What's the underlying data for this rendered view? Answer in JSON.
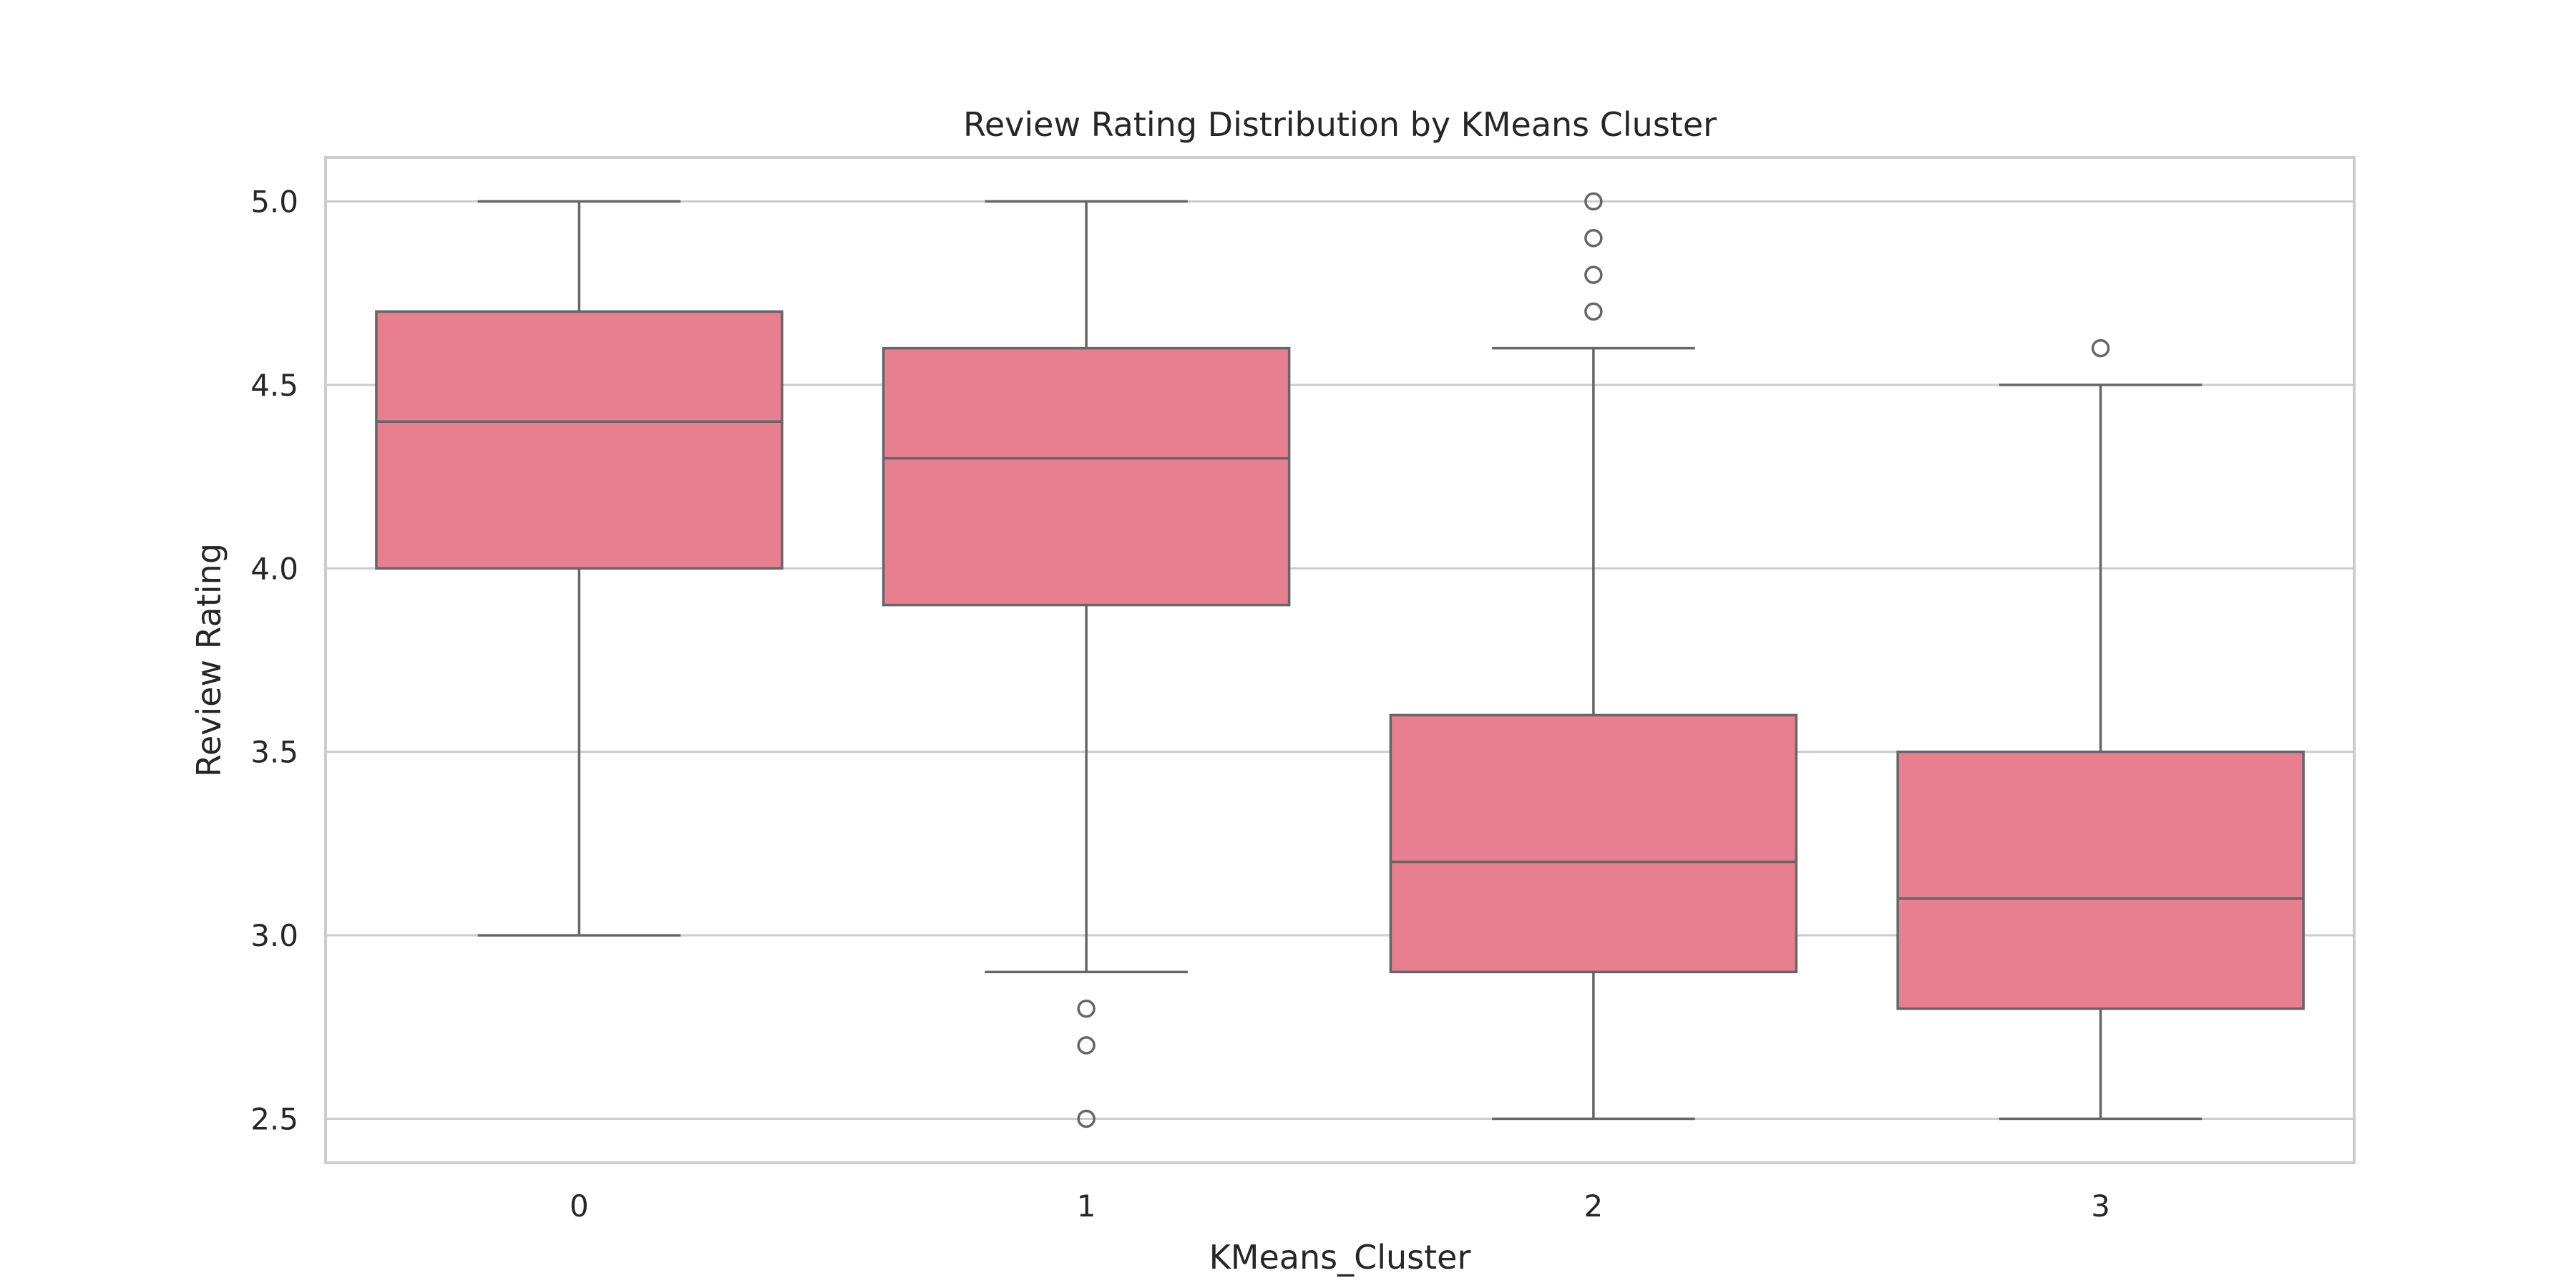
{
  "chart_data": {
    "type": "box",
    "title": "Review Rating Distribution by KMeans Cluster",
    "xlabel": "KMeans_Cluster",
    "ylabel": "Review Rating",
    "categories": [
      "0",
      "1",
      "2",
      "3"
    ],
    "ylim": [
      2.38,
      5.12
    ],
    "yticks": [
      2.5,
      3.0,
      3.5,
      4.0,
      4.5,
      5.0
    ],
    "ytick_labels": [
      "2.5",
      "3.0",
      "3.5",
      "4.0",
      "4.5",
      "5.0"
    ],
    "grid": true,
    "boxes": [
      {
        "category": "0",
        "whisker_low": 3.0,
        "q1": 4.0,
        "median": 4.4,
        "q3": 4.7,
        "whisker_high": 5.0,
        "outliers": []
      },
      {
        "category": "1",
        "whisker_low": 2.9,
        "q1": 3.9,
        "median": 4.3,
        "q3": 4.6,
        "whisker_high": 5.0,
        "outliers": [
          2.8,
          2.7,
          2.5
        ]
      },
      {
        "category": "2",
        "whisker_low": 2.5,
        "q1": 2.9,
        "median": 3.2,
        "q3": 3.6,
        "whisker_high": 4.6,
        "outliers": [
          4.7,
          4.8,
          4.9,
          5.0
        ]
      },
      {
        "category": "3",
        "whisker_low": 2.5,
        "q1": 2.8,
        "median": 3.1,
        "q3": 3.5,
        "whisker_high": 4.5,
        "outliers": [
          4.6
        ]
      }
    ],
    "colors": {
      "box_fill": "#e77f91",
      "line": "#666666",
      "grid": "#cccccc",
      "frame": "#cccccc",
      "text": "#262626"
    }
  }
}
